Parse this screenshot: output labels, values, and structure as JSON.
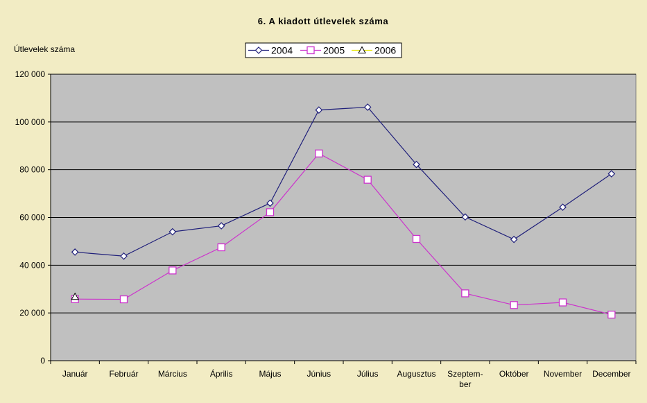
{
  "chart_data": {
    "type": "line",
    "title": "6. A kiadott útlevelek száma",
    "ylabel": "Útlevelek száma",
    "xlabel": "",
    "ylim": [
      0,
      120000
    ],
    "yticks": [
      0,
      20000,
      40000,
      60000,
      80000,
      100000,
      120000
    ],
    "ytick_labels": [
      "0",
      "20 000",
      "40 000",
      "60 000",
      "80 000",
      "100 000",
      "120 000"
    ],
    "categories": [
      "Január",
      "Február",
      "Március",
      "Április",
      "Május",
      "Június",
      "Július",
      "Augusztus",
      "Szeptem-ber",
      "Október",
      "November",
      "December"
    ],
    "category_lines": [
      [
        "Január"
      ],
      [
        "Február"
      ],
      [
        "Március"
      ],
      [
        "Április"
      ],
      [
        "Május"
      ],
      [
        "Június"
      ],
      [
        "Július"
      ],
      [
        "Augusztus"
      ],
      [
        "Szeptem-",
        "ber"
      ],
      [
        "Október"
      ],
      [
        "November"
      ],
      [
        "December"
      ]
    ],
    "grid": true,
    "legend_position": "top-center",
    "plot_background": "#c0c0c0",
    "page_background": "#f2ecc4",
    "series": [
      {
        "name": "2004",
        "color": "#1f1f7a",
        "marker": "diamond",
        "values": [
          45500,
          43800,
          54000,
          56500,
          66000,
          105000,
          106200,
          82200,
          60200,
          50800,
          64300,
          78300
        ]
      },
      {
        "name": "2005",
        "color": "#cc33cc",
        "marker": "square",
        "values": [
          25800,
          25700,
          37800,
          47500,
          62200,
          86800,
          75800,
          51000,
          28200,
          23300,
          24400,
          19300
        ]
      },
      {
        "name": "2006",
        "color": "#e6e600",
        "marker": "triangle",
        "values": [
          26800,
          null,
          null,
          null,
          null,
          null,
          null,
          null,
          null,
          null,
          null,
          null
        ]
      }
    ]
  }
}
